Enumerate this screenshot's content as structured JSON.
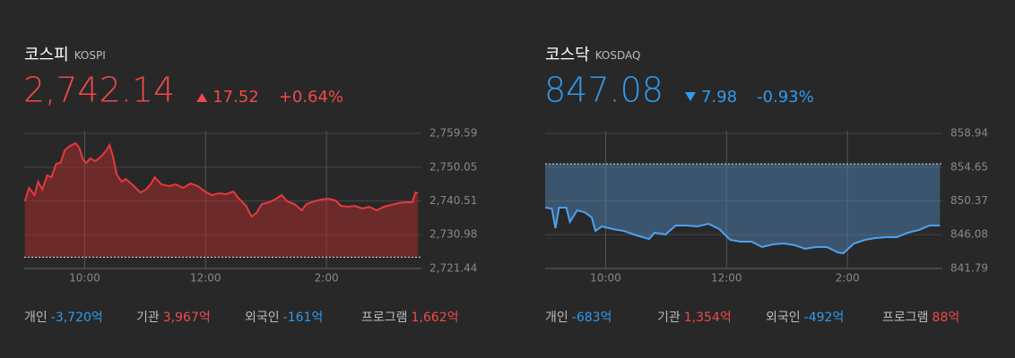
{
  "panels": [
    {
      "name": "코스피",
      "code": "KOSPI",
      "price": "2,742.14",
      "change": "17.52",
      "change_pct": "+0.64%",
      "color": "#f04a4a",
      "investors": [
        {
          "label": "개인",
          "value": "-3,720억"
        },
        {
          "label": "기관",
          "value": "3,967억"
        },
        {
          "label": "외국인",
          "value": "-161억"
        },
        {
          "label": "프로그램",
          "value": "1,662억"
        }
      ]
    },
    {
      "name": "코스닥",
      "code": "KOSDAQ",
      "price": "847.08",
      "change": "7.98",
      "change_pct": "-0.93%",
      "color": "#2e9bf0",
      "investors": [
        {
          "label": "개인",
          "value": "-683억"
        },
        {
          "label": "기관",
          "value": "1,354억"
        },
        {
          "label": "외국인",
          "value": "-492억"
        },
        {
          "label": "프로그램",
          "value": "88억"
        }
      ]
    }
  ],
  "chart_data": [
    {
      "type": "area",
      "color": "#e8383d",
      "fill": "rgba(190,45,45,0.45)",
      "baseline": 2724.62,
      "xlim": [
        9,
        15.57
      ],
      "xticks": [
        {
          "value": 10,
          "label": "10:00"
        },
        {
          "value": 12,
          "label": "12:00"
        },
        {
          "value": 14,
          "label": "2:00"
        }
      ],
      "ylim": [
        2721.44,
        2759.59
      ],
      "yticks": [
        {
          "value": 2721.44,
          "label": "2,721.44"
        },
        {
          "value": 2730.98,
          "label": "2,730.98"
        },
        {
          "value": 2740.51,
          "label": "2,740.51"
        },
        {
          "value": 2750.05,
          "label": "2,750.05"
        },
        {
          "value": 2759.59,
          "label": "2,759.59"
        }
      ],
      "grid": true,
      "x": [
        9.01,
        9.08,
        9.17,
        9.23,
        9.3,
        9.38,
        9.45,
        9.53,
        9.6,
        9.67,
        9.76,
        9.85,
        9.91,
        9.97,
        10.03,
        10.09,
        10.18,
        10.27,
        10.36,
        10.41,
        10.47,
        10.53,
        10.61,
        10.68,
        10.8,
        10.92,
        11.01,
        11.1,
        11.16,
        11.27,
        11.39,
        11.51,
        11.63,
        11.75,
        11.87,
        11.99,
        12.1,
        12.22,
        12.34,
        12.46,
        12.55,
        12.67,
        12.76,
        12.84,
        12.93,
        13.05,
        13.17,
        13.26,
        13.35,
        13.47,
        13.59,
        13.67,
        13.79,
        13.91,
        14.03,
        14.15,
        14.24,
        14.36,
        14.47,
        14.59,
        14.71,
        14.83,
        14.95,
        15.07,
        15.19,
        15.3,
        15.42,
        15.47,
        15.51
      ],
      "values": [
        2740.39,
        2744.18,
        2742.16,
        2745.95,
        2743.68,
        2747.72,
        2747.21,
        2751.0,
        2751.25,
        2754.79,
        2756.05,
        2756.81,
        2755.55,
        2752.26,
        2751.25,
        2752.52,
        2751.76,
        2753.02,
        2754.79,
        2756.31,
        2753.02,
        2747.97,
        2745.95,
        2746.71,
        2744.94,
        2742.92,
        2743.68,
        2745.44,
        2747.21,
        2745.19,
        2744.69,
        2745.19,
        2744.18,
        2745.44,
        2744.69,
        2743.17,
        2742.16,
        2742.67,
        2742.41,
        2743.17,
        2741.15,
        2739.13,
        2736.1,
        2737.11,
        2739.63,
        2740.14,
        2741.15,
        2742.16,
        2740.39,
        2739.63,
        2737.87,
        2739.63,
        2740.39,
        2740.9,
        2741.15,
        2740.64,
        2739.13,
        2738.88,
        2739.13,
        2738.37,
        2738.88,
        2737.87,
        2738.88,
        2739.38,
        2739.89,
        2740.14,
        2740.14,
        2742.92,
        2742.67
      ]
    },
    {
      "type": "area",
      "color": "#4ea1f0",
      "fill": "rgba(80,130,180,0.5)",
      "baseline": 855.06,
      "xlim": [
        9,
        15.57
      ],
      "xticks": [
        {
          "value": 10,
          "label": "10:00"
        },
        {
          "value": 12,
          "label": "12:00"
        },
        {
          "value": 14,
          "label": "2:00"
        }
      ],
      "ylim": [
        841.79,
        858.94
      ],
      "yticks": [
        841.79,
        846.08,
        850.37,
        854.65,
        858.94
      ],
      "grid": true,
      "x": [
        9.0,
        9.11,
        9.17,
        9.23,
        9.35,
        9.41,
        9.53,
        9.65,
        9.77,
        9.83,
        9.94,
        10.12,
        10.3,
        10.51,
        10.72,
        10.81,
        10.99,
        11.16,
        11.34,
        11.52,
        11.7,
        11.88,
        12.06,
        12.23,
        12.41,
        12.59,
        12.77,
        12.95,
        13.13,
        13.3,
        13.48,
        13.66,
        13.84,
        13.93,
        14.11,
        14.29,
        14.46,
        14.64,
        14.82,
        15.0,
        15.18,
        15.36,
        15.53
      ],
      "values": [
        849.51,
        849.4,
        846.9,
        849.51,
        849.51,
        847.7,
        849.17,
        848.95,
        848.26,
        846.56,
        847.13,
        846.79,
        846.56,
        845.99,
        845.54,
        846.33,
        846.11,
        847.24,
        847.24,
        847.13,
        847.47,
        846.79,
        845.42,
        845.2,
        845.2,
        844.52,
        844.86,
        844.97,
        844.74,
        844.29,
        844.52,
        844.52,
        843.83,
        843.72,
        844.97,
        845.42,
        845.65,
        845.76,
        845.76,
        846.33,
        846.67,
        847.24,
        847.24
      ]
    }
  ]
}
